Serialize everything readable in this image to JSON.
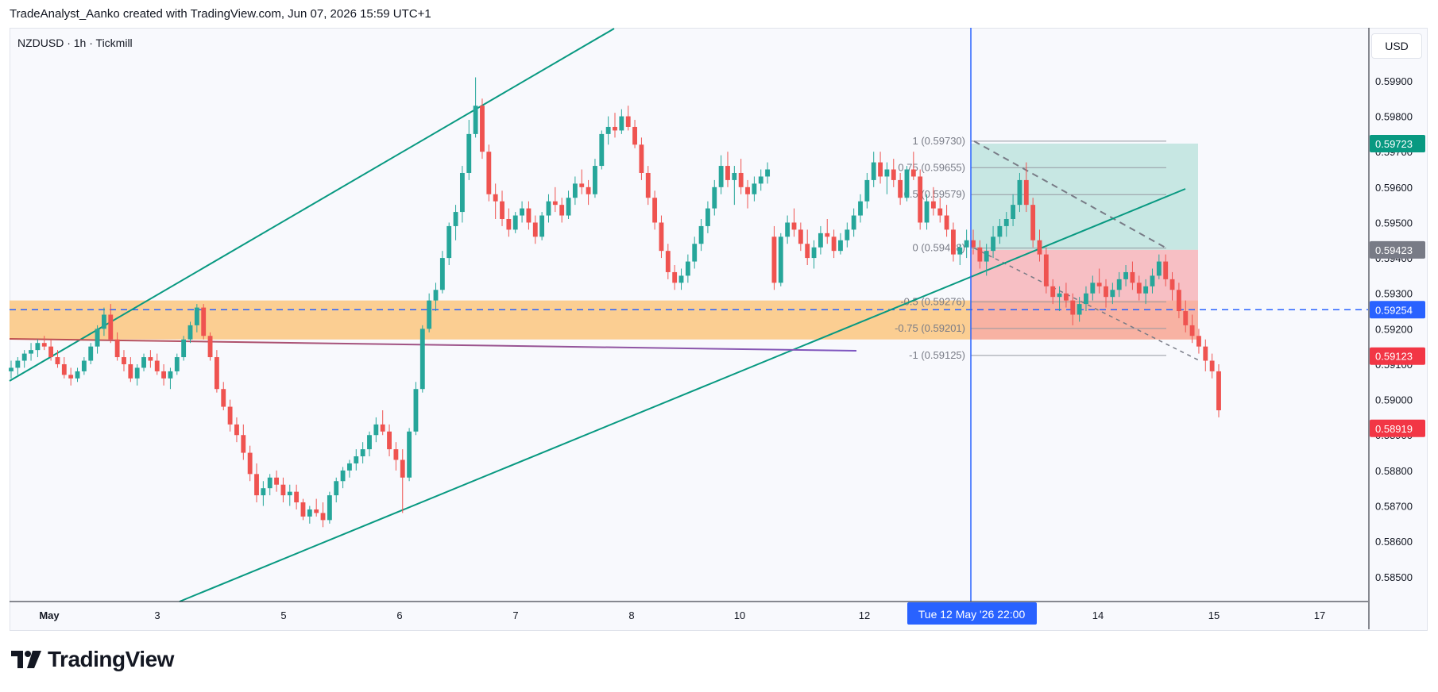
{
  "credit": "TradeAnalyst_Aanko created with TradingView.com, Jun 07, 2026 15:59 UTC+1",
  "symbol": "NZDUSD · 1h · Tickmill",
  "currency": "USD",
  "brand": "TradingView",
  "colors": {
    "up": "#26a69a",
    "down": "#ef5350",
    "channel": "#089981",
    "zone": "#fbc77f",
    "hline": "#2962ff",
    "vline": "#2962ff",
    "diag": "#7e57c2",
    "target": "#9fd8cd",
    "stop": "#f7a6ab"
  },
  "chart_data": {
    "type": "candlestick",
    "y_range": [
      0.5843,
      0.6005
    ],
    "y_ticks": [
      "0.59900",
      "0.59800",
      "0.59700",
      "0.59600",
      "0.59500",
      "0.59400",
      "0.59300",
      "0.59200",
      "0.59100",
      "0.59000",
      "0.58900",
      "0.58800",
      "0.58700",
      "0.58600",
      "0.58500"
    ],
    "x_labels": [
      "May",
      "3",
      "5",
      "6",
      "7",
      "8",
      "10",
      "12",
      "14",
      "15",
      "17"
    ],
    "crosshair_time": "Tue 12 May '26   22:00",
    "price_badges": [
      {
        "value": "0.59723",
        "color": "#089981"
      },
      {
        "value": "0.59423",
        "color": "#787b86"
      },
      {
        "value": "0.59254",
        "color": "#2962ff"
      },
      {
        "value": "0.59123",
        "color": "#f23645"
      },
      {
        "value": "0.58919",
        "color": "#f23645"
      }
    ],
    "fib_levels": [
      {
        "label": "1 (0.59730)",
        "value": 0.5973
      },
      {
        "label": "0.75 (0.59655)",
        "value": 0.59655
      },
      {
        "label": "0.5 (0.59579)",
        "value": 0.59579
      },
      {
        "label": "0 (0.59428)",
        "value": 0.59428
      },
      {
        "label": "-0.5 (0.59276)",
        "value": 0.59276
      },
      {
        "label": "-0.75 (0.59201)",
        "value": 0.59201
      },
      {
        "label": "-1 (0.59125)",
        "value": 0.59125
      }
    ],
    "horizontal_line": 0.59254,
    "support_zone": [
      0.5917,
      0.5928
    ],
    "position": {
      "entry": 0.59423,
      "target": 0.59723,
      "stop": 0.59425,
      "stop_low": 0.5917
    },
    "candles": [
      [
        0.5908,
        0.5911,
        0.5906,
        0.5909
      ],
      [
        0.5909,
        0.5912,
        0.5907,
        0.5911
      ],
      [
        0.5911,
        0.5914,
        0.5909,
        0.5913
      ],
      [
        0.5913,
        0.5916,
        0.5911,
        0.5914
      ],
      [
        0.5914,
        0.5917,
        0.5912,
        0.5916
      ],
      [
        0.5916,
        0.5918,
        0.5914,
        0.5915
      ],
      [
        0.5915,
        0.5917,
        0.5911,
        0.5912
      ],
      [
        0.5912,
        0.5914,
        0.5909,
        0.591
      ],
      [
        0.591,
        0.5912,
        0.5906,
        0.5907
      ],
      [
        0.5907,
        0.5909,
        0.5904,
        0.5906
      ],
      [
        0.5906,
        0.5909,
        0.5905,
        0.5908
      ],
      [
        0.5908,
        0.5912,
        0.5907,
        0.5911
      ],
      [
        0.5911,
        0.5916,
        0.591,
        0.5915
      ],
      [
        0.5915,
        0.5921,
        0.5913,
        0.592
      ],
      [
        0.592,
        0.5926,
        0.5918,
        0.5924
      ],
      [
        0.5924,
        0.5927,
        0.5916,
        0.5917
      ],
      [
        0.5917,
        0.5919,
        0.5911,
        0.5912
      ],
      [
        0.5912,
        0.5914,
        0.5908,
        0.591
      ],
      [
        0.591,
        0.5912,
        0.5905,
        0.5906
      ],
      [
        0.5906,
        0.591,
        0.5904,
        0.5909
      ],
      [
        0.5909,
        0.5913,
        0.5908,
        0.5912
      ],
      [
        0.5912,
        0.5914,
        0.5909,
        0.5911
      ],
      [
        0.5911,
        0.5913,
        0.5907,
        0.5908
      ],
      [
        0.5908,
        0.591,
        0.5904,
        0.5906
      ],
      [
        0.5906,
        0.5909,
        0.5903,
        0.5908
      ],
      [
        0.5908,
        0.5913,
        0.5907,
        0.5912
      ],
      [
        0.5912,
        0.5918,
        0.5911,
        0.5917
      ],
      [
        0.5917,
        0.5922,
        0.5916,
        0.5921
      ],
      [
        0.5921,
        0.5927,
        0.5919,
        0.5926
      ],
      [
        0.5926,
        0.5927,
        0.5917,
        0.5918
      ],
      [
        0.5918,
        0.5919,
        0.5911,
        0.5912
      ],
      [
        0.5912,
        0.5914,
        0.5902,
        0.5903
      ],
      [
        0.5903,
        0.5905,
        0.5897,
        0.5898
      ],
      [
        0.5898,
        0.59,
        0.5891,
        0.5893
      ],
      [
        0.5893,
        0.5895,
        0.5888,
        0.589
      ],
      [
        0.589,
        0.5893,
        0.5883,
        0.5885
      ],
      [
        0.5885,
        0.5887,
        0.5877,
        0.5879
      ],
      [
        0.5879,
        0.5882,
        0.5871,
        0.5873
      ],
      [
        0.5873,
        0.5877,
        0.587,
        0.5875
      ],
      [
        0.5875,
        0.5879,
        0.5873,
        0.5878
      ],
      [
        0.5878,
        0.588,
        0.5874,
        0.5876
      ],
      [
        0.5876,
        0.5878,
        0.5871,
        0.5873
      ],
      [
        0.5873,
        0.5876,
        0.587,
        0.5874
      ],
      [
        0.5874,
        0.5876,
        0.5869,
        0.5871
      ],
      [
        0.5871,
        0.5872,
        0.5866,
        0.5867
      ],
      [
        0.5867,
        0.587,
        0.5865,
        0.5869
      ],
      [
        0.5869,
        0.5872,
        0.5867,
        0.5868
      ],
      [
        0.5868,
        0.5871,
        0.5864,
        0.5866
      ],
      [
        0.5866,
        0.5874,
        0.5865,
        0.5873
      ],
      [
        0.5873,
        0.5878,
        0.5871,
        0.5877
      ],
      [
        0.5877,
        0.5881,
        0.5875,
        0.588
      ],
      [
        0.588,
        0.5883,
        0.5878,
        0.5882
      ],
      [
        0.5882,
        0.5886,
        0.588,
        0.5884
      ],
      [
        0.5884,
        0.5888,
        0.5882,
        0.5886
      ],
      [
        0.5886,
        0.5891,
        0.5884,
        0.589
      ],
      [
        0.589,
        0.5895,
        0.5888,
        0.5893
      ],
      [
        0.5893,
        0.5897,
        0.589,
        0.5891
      ],
      [
        0.5891,
        0.5893,
        0.5884,
        0.5886
      ],
      [
        0.5886,
        0.5888,
        0.588,
        0.5883
      ],
      [
        0.5883,
        0.5886,
        0.5868,
        0.5878
      ],
      [
        0.5878,
        0.5892,
        0.5877,
        0.5891
      ],
      [
        0.5891,
        0.5905,
        0.589,
        0.5903
      ],
      [
        0.5903,
        0.5921,
        0.5902,
        0.592
      ],
      [
        0.592,
        0.593,
        0.5919,
        0.5928
      ],
      [
        0.5928,
        0.5933,
        0.5925,
        0.5931
      ],
      [
        0.5931,
        0.5942,
        0.593,
        0.594
      ],
      [
        0.594,
        0.595,
        0.5938,
        0.5949
      ],
      [
        0.5949,
        0.5955,
        0.5945,
        0.5953
      ],
      [
        0.5953,
        0.5966,
        0.595,
        0.5964
      ],
      [
        0.5964,
        0.5979,
        0.5962,
        0.5975
      ],
      [
        0.5975,
        0.5991,
        0.5974,
        0.5983
      ],
      [
        0.5983,
        0.5985,
        0.5968,
        0.597
      ],
      [
        0.597,
        0.5972,
        0.5956,
        0.5958
      ],
      [
        0.5958,
        0.5961,
        0.5951,
        0.5956
      ],
      [
        0.5956,
        0.5959,
        0.5949,
        0.5951
      ],
      [
        0.5951,
        0.5954,
        0.5946,
        0.5948
      ],
      [
        0.5948,
        0.5953,
        0.5947,
        0.5952
      ],
      [
        0.5952,
        0.5956,
        0.595,
        0.5954
      ],
      [
        0.5954,
        0.5956,
        0.5948,
        0.595
      ],
      [
        0.595,
        0.5952,
        0.5944,
        0.5946
      ],
      [
        0.5946,
        0.5953,
        0.5945,
        0.5952
      ],
      [
        0.5952,
        0.5958,
        0.595,
        0.5956
      ],
      [
        0.5956,
        0.596,
        0.5953,
        0.5955
      ],
      [
        0.5955,
        0.5957,
        0.595,
        0.5952
      ],
      [
        0.5952,
        0.5959,
        0.5951,
        0.5957
      ],
      [
        0.5957,
        0.5963,
        0.5955,
        0.5961
      ],
      [
        0.5961,
        0.5965,
        0.5958,
        0.596
      ],
      [
        0.596,
        0.5962,
        0.5955,
        0.5958
      ],
      [
        0.5958,
        0.5968,
        0.5957,
        0.5966
      ],
      [
        0.5966,
        0.5976,
        0.5965,
        0.5975
      ],
      [
        0.5975,
        0.598,
        0.5972,
        0.5977
      ],
      [
        0.5977,
        0.5981,
        0.5974,
        0.5976
      ],
      [
        0.5976,
        0.5982,
        0.5975,
        0.598
      ],
      [
        0.598,
        0.5983,
        0.5976,
        0.5977
      ],
      [
        0.5977,
        0.5979,
        0.5971,
        0.5972
      ],
      [
        0.5972,
        0.5974,
        0.5962,
        0.5964
      ],
      [
        0.5964,
        0.5966,
        0.5955,
        0.5957
      ],
      [
        0.5957,
        0.5959,
        0.5948,
        0.595
      ],
      [
        0.595,
        0.5952,
        0.594,
        0.5942
      ],
      [
        0.5942,
        0.5944,
        0.5934,
        0.5936
      ],
      [
        0.5936,
        0.5938,
        0.5931,
        0.5933
      ],
      [
        0.5933,
        0.5937,
        0.5931,
        0.5935
      ],
      [
        0.5935,
        0.5941,
        0.5933,
        0.5939
      ],
      [
        0.5939,
        0.5946,
        0.5937,
        0.5944
      ],
      [
        0.5944,
        0.5951,
        0.5942,
        0.5949
      ],
      [
        0.5949,
        0.5956,
        0.5947,
        0.5954
      ],
      [
        0.5954,
        0.5962,
        0.5952,
        0.596
      ],
      [
        0.596,
        0.5969,
        0.5958,
        0.5966
      ],
      [
        0.5966,
        0.597,
        0.596,
        0.5962
      ],
      [
        0.5962,
        0.5966,
        0.5955,
        0.5964
      ],
      [
        0.5964,
        0.5968,
        0.5958,
        0.596
      ],
      [
        0.596,
        0.5962,
        0.5954,
        0.5958
      ],
      [
        0.5958,
        0.5963,
        0.5956,
        0.5961
      ],
      [
        0.5961,
        0.5965,
        0.5959,
        0.5963
      ],
      [
        0.5963,
        0.5967,
        0.5961,
        0.5965
      ],
      [
        0.5946,
        0.5949,
        0.5931,
        0.5933
      ],
      [
        0.5933,
        0.5947,
        0.5932,
        0.5946
      ],
      [
        0.5946,
        0.5952,
        0.5944,
        0.595
      ],
      [
        0.595,
        0.5954,
        0.5946,
        0.5948
      ],
      [
        0.5948,
        0.595,
        0.5942,
        0.5944
      ],
      [
        0.5944,
        0.5948,
        0.5938,
        0.594
      ],
      [
        0.594,
        0.5945,
        0.5937,
        0.5943
      ],
      [
        0.5943,
        0.5949,
        0.5941,
        0.5947
      ],
      [
        0.5947,
        0.5951,
        0.5944,
        0.5946
      ],
      [
        0.5946,
        0.5948,
        0.594,
        0.5942
      ],
      [
        0.5942,
        0.5947,
        0.5941,
        0.5945
      ],
      [
        0.5945,
        0.595,
        0.5943,
        0.5948
      ],
      [
        0.5948,
        0.5954,
        0.5946,
        0.5952
      ],
      [
        0.5952,
        0.5958,
        0.595,
        0.5956
      ],
      [
        0.5956,
        0.5964,
        0.5954,
        0.5962
      ],
      [
        0.5962,
        0.597,
        0.596,
        0.5967
      ],
      [
        0.5967,
        0.597,
        0.5961,
        0.5963
      ],
      [
        0.5963,
        0.5967,
        0.5958,
        0.5965
      ],
      [
        0.5965,
        0.5968,
        0.596,
        0.5962
      ],
      [
        0.5962,
        0.5964,
        0.5955,
        0.5957
      ],
      [
        0.5957,
        0.5966,
        0.5956,
        0.5965
      ],
      [
        0.5965,
        0.597,
        0.5962,
        0.5963
      ],
      [
        0.5963,
        0.5965,
        0.5948,
        0.595
      ],
      [
        0.595,
        0.5958,
        0.5948,
        0.5956
      ],
      [
        0.5956,
        0.596,
        0.5952,
        0.5954
      ],
      [
        0.5954,
        0.5957,
        0.595,
        0.5952
      ],
      [
        0.5952,
        0.5955,
        0.5946,
        0.5948
      ],
      [
        0.5948,
        0.595,
        0.5939,
        0.5941
      ],
      [
        0.5941,
        0.5944,
        0.5938,
        0.5943
      ],
      [
        0.5943,
        0.5948,
        0.594,
        0.5945
      ],
      [
        0.5945,
        0.5948,
        0.5941,
        0.5943
      ],
      [
        0.5943,
        0.5945,
        0.5937,
        0.5939
      ],
      [
        0.5939,
        0.5944,
        0.5935,
        0.5942
      ],
      [
        0.5942,
        0.5949,
        0.594,
        0.5946
      ],
      [
        0.5946,
        0.5951,
        0.5944,
        0.5949
      ],
      [
        0.5949,
        0.5953,
        0.5946,
        0.5951
      ],
      [
        0.5951,
        0.5958,
        0.5949,
        0.5955
      ],
      [
        0.5955,
        0.5964,
        0.5953,
        0.5962
      ],
      [
        0.5962,
        0.5967,
        0.5953,
        0.5955
      ],
      [
        0.5955,
        0.5957,
        0.5943,
        0.5945
      ],
      [
        0.5945,
        0.5948,
        0.5939,
        0.5941
      ],
      [
        0.5941,
        0.5943,
        0.593,
        0.5932
      ],
      [
        0.5932,
        0.5934,
        0.5927,
        0.5929
      ],
      [
        0.5929,
        0.5932,
        0.5925,
        0.593
      ],
      [
        0.593,
        0.5933,
        0.5926,
        0.5928
      ],
      [
        0.5928,
        0.593,
        0.5921,
        0.5924
      ],
      [
        0.5924,
        0.5929,
        0.5922,
        0.5927
      ],
      [
        0.5927,
        0.5932,
        0.5925,
        0.593
      ],
      [
        0.593,
        0.5935,
        0.5928,
        0.5933
      ],
      [
        0.5933,
        0.5937,
        0.593,
        0.5932
      ],
      [
        0.5932,
        0.5934,
        0.5926,
        0.5929
      ],
      [
        0.5929,
        0.5933,
        0.5927,
        0.5931
      ],
      [
        0.5931,
        0.5936,
        0.5929,
        0.5934
      ],
      [
        0.5934,
        0.5938,
        0.5932,
        0.5936
      ],
      [
        0.5936,
        0.5939,
        0.5931,
        0.5933
      ],
      [
        0.5933,
        0.5935,
        0.5928,
        0.593
      ],
      [
        0.593,
        0.5934,
        0.5927,
        0.5932
      ],
      [
        0.5932,
        0.5937,
        0.593,
        0.5935
      ],
      [
        0.5935,
        0.5941,
        0.5934,
        0.5939
      ],
      [
        0.5939,
        0.5941,
        0.5932,
        0.5934
      ],
      [
        0.5934,
        0.5936,
        0.5928,
        0.5931
      ],
      [
        0.5931,
        0.5933,
        0.5923,
        0.5925
      ],
      [
        0.5925,
        0.5928,
        0.5919,
        0.5921
      ],
      [
        0.5921,
        0.5924,
        0.5916,
        0.5918
      ],
      [
        0.5918,
        0.592,
        0.5913,
        0.5915
      ],
      [
        0.5915,
        0.5917,
        0.5908,
        0.5911
      ],
      [
        0.5911,
        0.5913,
        0.5906,
        0.5908
      ],
      [
        0.5908,
        0.591,
        0.5895,
        0.5897
      ]
    ]
  }
}
